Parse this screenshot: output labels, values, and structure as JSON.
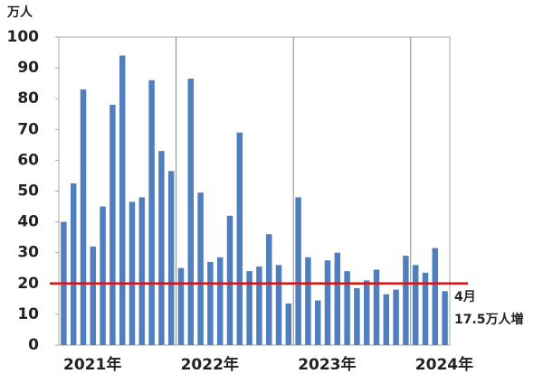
{
  "chart_data": {
    "type": "bar",
    "unit": "万人",
    "categories": [
      "2021年",
      null,
      null,
      null,
      null,
      null,
      null,
      null,
      null,
      null,
      null,
      null,
      "2022年",
      null,
      null,
      null,
      null,
      null,
      null,
      null,
      null,
      null,
      null,
      null,
      "2023年",
      null,
      null,
      null,
      null,
      null,
      null,
      null,
      null,
      null,
      null,
      null,
      "2024年",
      null,
      null,
      null
    ],
    "values": [
      40,
      52.5,
      83,
      32,
      45,
      78,
      94,
      46.5,
      48,
      86,
      63,
      56.5,
      25,
      86.5,
      49.5,
      27,
      28.5,
      42,
      69,
      24,
      25.5,
      36,
      26,
      13.5,
      48,
      28.5,
      14.5,
      27.5,
      30,
      24,
      18.5,
      21,
      24.5,
      16.5,
      18,
      29,
      26,
      23.5,
      31.5,
      17.5
    ],
    "color": "#4f7fbf",
    "ylim": [
      0,
      100
    ],
    "yticks": [
      0,
      10,
      20,
      30,
      40,
      50,
      60,
      70,
      80,
      90,
      100
    ],
    "reference_line": {
      "value": 20,
      "color": "#e01010"
    },
    "annotation": [
      "4月",
      "17.5万人増"
    ]
  }
}
